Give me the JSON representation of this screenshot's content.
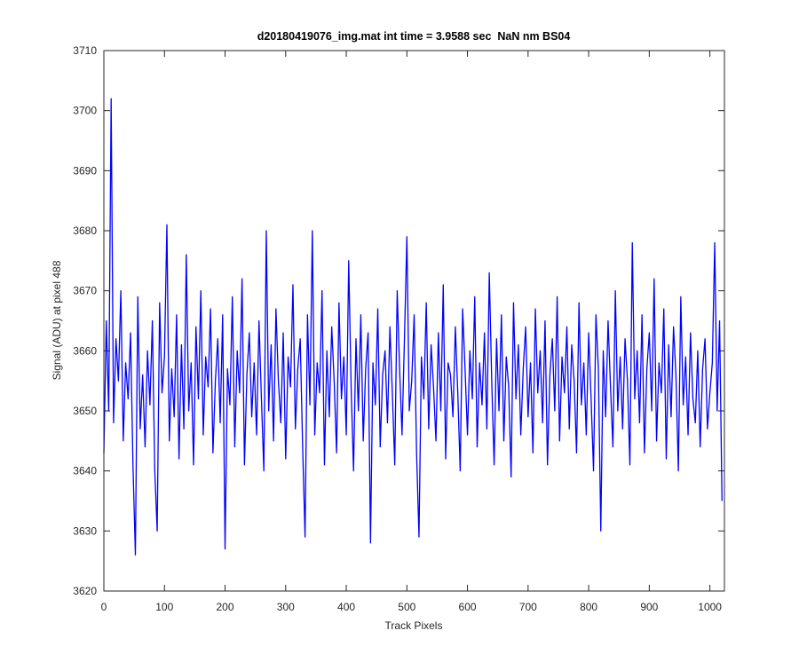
{
  "chart_data": {
    "type": "line",
    "title": "d20180419076_img.mat int time = 3.9588 sec  NaN nm BS04",
    "xlabel": "Track Pixels",
    "ylabel": "Signal (ADU) at pixel 488",
    "xlim": [
      0,
      1024
    ],
    "ylim": [
      3620,
      3710
    ],
    "xticks": [
      0,
      100,
      200,
      300,
      400,
      500,
      600,
      700,
      800,
      900,
      1000
    ],
    "yticks": [
      3620,
      3630,
      3640,
      3650,
      3660,
      3670,
      3680,
      3690,
      3700,
      3710
    ],
    "x": [
      0,
      4,
      8,
      12,
      16,
      20,
      24,
      28,
      32,
      36,
      40,
      44,
      48,
      52,
      56,
      60,
      64,
      68,
      72,
      76,
      80,
      84,
      88,
      92,
      96,
      100,
      104,
      108,
      112,
      116,
      120,
      124,
      128,
      132,
      136,
      140,
      144,
      148,
      152,
      156,
      160,
      164,
      168,
      172,
      176,
      180,
      184,
      188,
      192,
      196,
      200,
      204,
      208,
      212,
      216,
      220,
      224,
      228,
      232,
      236,
      240,
      244,
      248,
      252,
      256,
      260,
      264,
      268,
      272,
      276,
      280,
      284,
      288,
      292,
      296,
      300,
      304,
      308,
      312,
      316,
      320,
      324,
      328,
      332,
      336,
      340,
      344,
      348,
      352,
      356,
      360,
      364,
      368,
      372,
      376,
      380,
      384,
      388,
      392,
      396,
      400,
      404,
      408,
      412,
      416,
      420,
      424,
      428,
      432,
      436,
      440,
      444,
      448,
      452,
      456,
      460,
      464,
      468,
      472,
      476,
      480,
      484,
      488,
      492,
      496,
      500,
      504,
      508,
      512,
      516,
      520,
      524,
      528,
      532,
      536,
      540,
      544,
      548,
      552,
      556,
      560,
      564,
      568,
      572,
      576,
      580,
      584,
      588,
      592,
      596,
      600,
      604,
      608,
      612,
      616,
      620,
      624,
      628,
      632,
      636,
      640,
      644,
      648,
      652,
      656,
      660,
      664,
      668,
      672,
      676,
      680,
      684,
      688,
      692,
      696,
      700,
      704,
      708,
      712,
      716,
      720,
      724,
      728,
      732,
      736,
      740,
      744,
      748,
      752,
      756,
      760,
      764,
      768,
      772,
      776,
      780,
      784,
      788,
      792,
      796,
      800,
      804,
      808,
      812,
      816,
      820,
      824,
      828,
      832,
      836,
      840,
      844,
      848,
      852,
      856,
      860,
      864,
      868,
      872,
      876,
      880,
      884,
      888,
      892,
      896,
      900,
      904,
      908,
      912,
      916,
      920,
      924,
      928,
      932,
      936,
      940,
      944,
      948,
      952,
      956,
      960,
      964,
      968,
      972,
      976,
      980,
      984,
      988,
      992,
      996,
      1000,
      1004,
      1008,
      1012,
      1016,
      1020
    ],
    "series": [
      {
        "color": "#0000ff",
        "values": [
          3643,
          3665,
          3650,
          3702,
          3648,
          3662,
          3655,
          3670,
          3645,
          3658,
          3652,
          3663,
          3641,
          3626,
          3669,
          3647,
          3656,
          3644,
          3660,
          3651,
          3665,
          3640,
          3630,
          3668,
          3653,
          3659,
          3681,
          3645,
          3657,
          3649,
          3666,
          3642,
          3661,
          3647,
          3676,
          3650,
          3658,
          3641,
          3664,
          3652,
          3670,
          3646,
          3659,
          3654,
          3667,
          3643,
          3655,
          3662,
          3648,
          3666,
          3627,
          3657,
          3651,
          3669,
          3644,
          3660,
          3653,
          3672,
          3641,
          3656,
          3663,
          3649,
          3658,
          3646,
          3665,
          3652,
          3640,
          3680,
          3650,
          3661,
          3645,
          3667,
          3655,
          3648,
          3663,
          3642,
          3659,
          3654,
          3671,
          3647,
          3657,
          3662,
          3644,
          3629,
          3666,
          3651,
          3680,
          3646,
          3658,
          3653,
          3670,
          3641,
          3660,
          3649,
          3664,
          3655,
          3643,
          3668,
          3652,
          3659,
          3646,
          3675,
          3654,
          3640,
          3662,
          3650,
          3666,
          3645,
          3657,
          3663,
          3628,
          3658,
          3651,
          3667,
          3644,
          3656,
          3660,
          3648,
          3664,
          3653,
          3641,
          3670,
          3657,
          3646,
          3662,
          3679,
          3650,
          3655,
          3666,
          3643,
          3629,
          3659,
          3652,
          3668,
          3647,
          3661,
          3654,
          3645,
          3663,
          3650,
          3671,
          3642,
          3658,
          3656,
          3649,
          3664,
          3653,
          3640,
          3667,
          3657,
          3646,
          3660,
          3652,
          3669,
          3644,
          3658,
          3651,
          3663,
          3647,
          3673,
          3655,
          3641,
          3662,
          3650,
          3666,
          3645,
          3659,
          3654,
          3639,
          3668,
          3652,
          3661,
          3646,
          3657,
          3664,
          3649,
          3658,
          3643,
          3667,
          3653,
          3660,
          3648,
          3665,
          3641,
          3656,
          3662,
          3650,
          3669,
          3645,
          3659,
          3653,
          3664,
          3647,
          3661,
          3655,
          3643,
          3668,
          3651,
          3658,
          3646,
          3663,
          3652,
          3640,
          3666,
          3657,
          3630,
          3660,
          3649,
          3665,
          3654,
          3644,
          3670,
          3650,
          3659,
          3647,
          3662,
          3655,
          3641,
          3678,
          3652,
          3660,
          3648,
          3666,
          3643,
          3657,
          3663,
          3650,
          3672,
          3645,
          3658,
          3653,
          3667,
          3642,
          3661,
          3649,
          3664,
          3656,
          3640,
          3669,
          3651,
          3659,
          3646,
          3663,
          3652,
          3648,
          3660,
          3644,
          3657,
          3662,
          3647,
          3653,
          3658,
          3678,
          3650,
          3665,
          3635
        ]
      }
    ]
  }
}
